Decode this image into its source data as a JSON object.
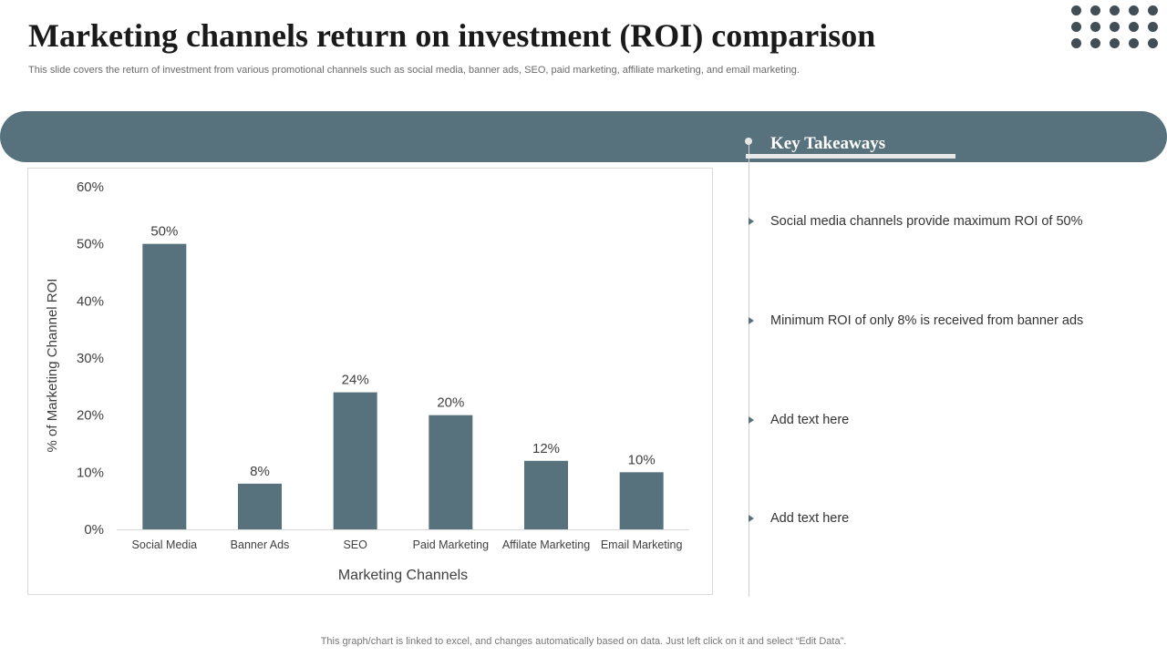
{
  "slide": {
    "title": "Marketing channels return on investment (ROI) comparison",
    "subtitle": "This slide covers the return of investment from various promotional channels such as social media, banner ads, SEO, paid marketing, affiliate marketing, and email marketing.",
    "footer": "This graph/chart is linked to excel,  and changes automatically based on data. Just left click on it and select “Edit Data”."
  },
  "colors": {
    "accent": "#57727c",
    "bar": "#57727c",
    "dots": "#424e56"
  },
  "takeaways": {
    "title": "Key Takeaways",
    "items": [
      "Social media channels provide maximum ROI of 50%",
      "Minimum ROI of only 8% is received from banner ads",
      "Add text here",
      "Add text here"
    ]
  },
  "chart_data": {
    "type": "bar",
    "categories": [
      "Social Media",
      "Banner Ads",
      "SEO",
      "Paid Marketing",
      "Affilate Marketing",
      "Email Marketing"
    ],
    "values": [
      50,
      8,
      24,
      20,
      12,
      10
    ],
    "data_labels": [
      "50%",
      "8%",
      "24%",
      "20%",
      "12%",
      "10%"
    ],
    "xlabel": "Marketing Channels",
    "ylabel": "% of Marketing Channel ROI",
    "ylim": [
      0,
      60
    ],
    "yticks": [
      0,
      10,
      20,
      30,
      40,
      50,
      60
    ],
    "ytick_labels": [
      "0%",
      "10%",
      "20%",
      "30%",
      "40%",
      "50%",
      "60%"
    ],
    "grid": false,
    "legend": "none"
  }
}
